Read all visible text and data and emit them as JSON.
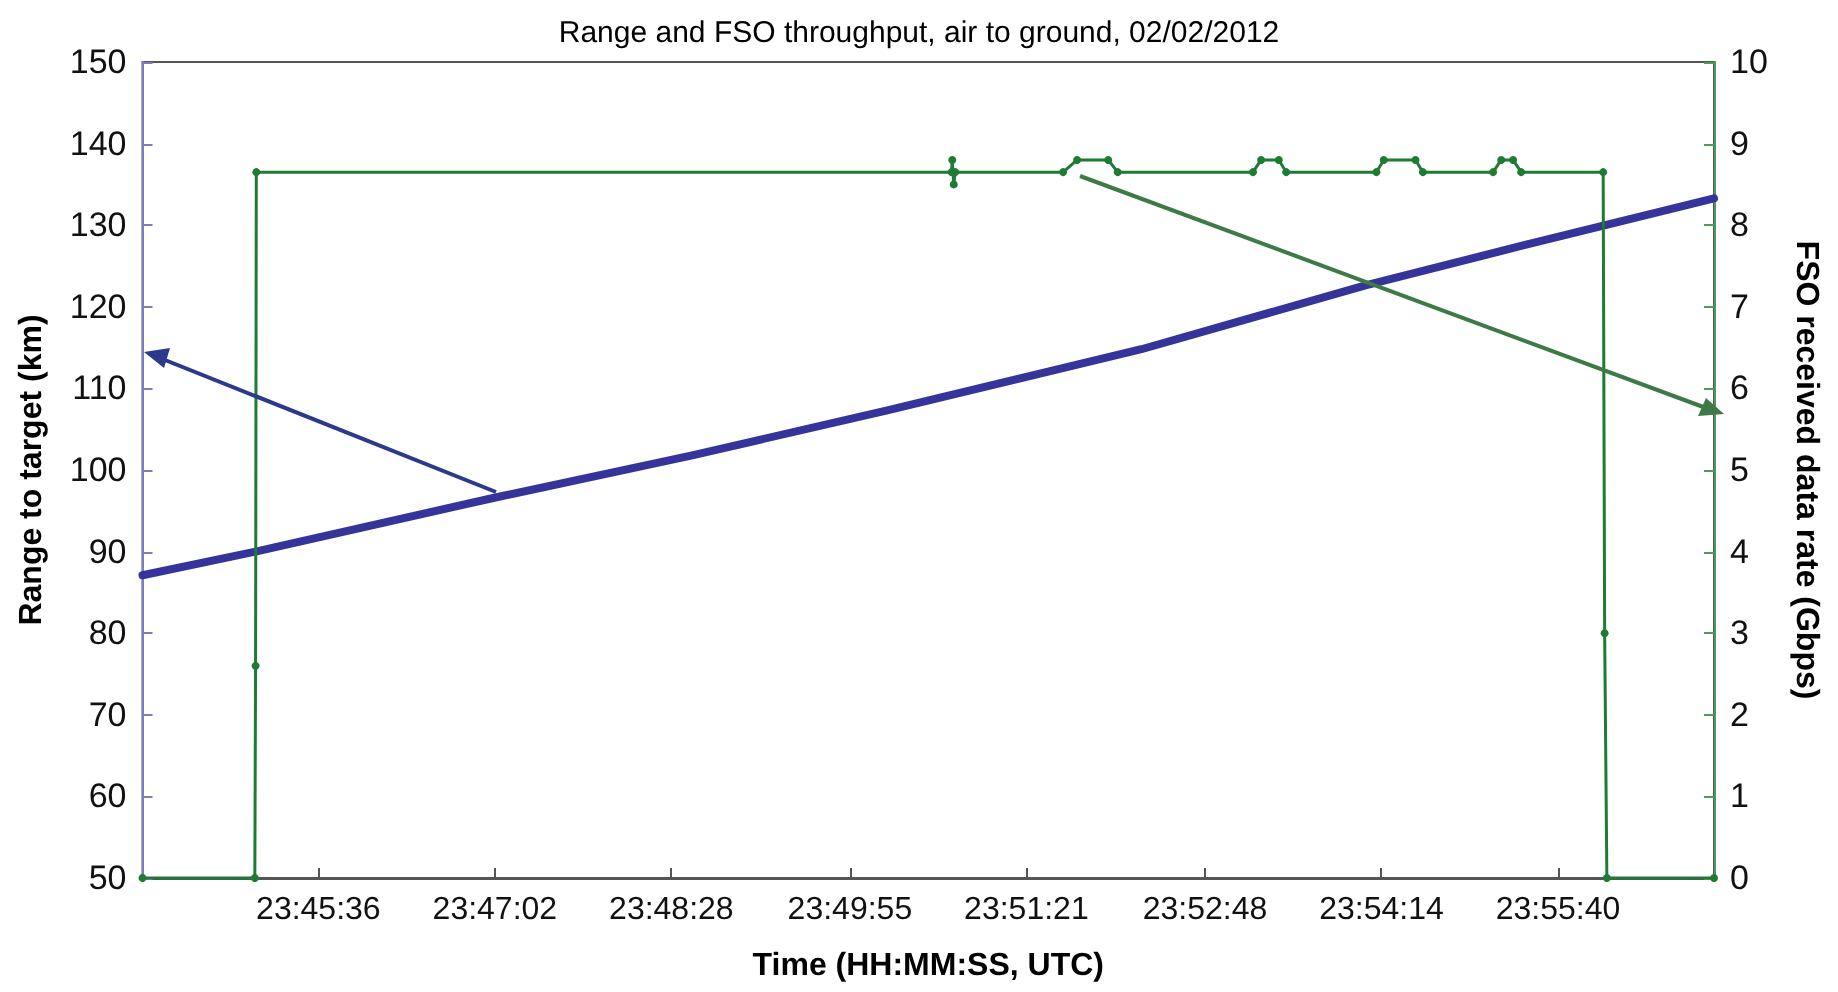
{
  "chart_data": {
    "type": "line",
    "title": "Range and FSO throughput, air to ground, 02/02/2012",
    "xlabel": "Time (HH:MM:SS, UTC)",
    "ylabel": "Range to target (km)",
    "y2label": "FSO received data rate (Gbps)",
    "xlim": [
      23.7362,
      23.9489
    ],
    "xticks": [
      {
        "value": 23.76,
        "label": "23:45:36"
      },
      {
        "value": 23.783889,
        "label": "23:47:02"
      },
      {
        "value": 23.807778,
        "label": "23:48:28"
      },
      {
        "value": 23.831944,
        "label": "23:49:55"
      },
      {
        "value": 23.855833,
        "label": "23:51:21"
      },
      {
        "value": 23.88,
        "label": "23:52:48"
      },
      {
        "value": 23.903889,
        "label": "23:54:14"
      },
      {
        "value": 23.927778,
        "label": "23:55:40"
      }
    ],
    "ylim": [
      50,
      150
    ],
    "yticks": [
      50,
      60,
      70,
      80,
      90,
      100,
      110,
      120,
      130,
      140,
      150
    ],
    "y2lim": [
      0,
      10
    ],
    "y2ticks": [
      0,
      1,
      2,
      3,
      4,
      5,
      6,
      7,
      8,
      9,
      10
    ],
    "grid": false,
    "series": [
      {
        "color": "#34349a",
        "line_style": "solid",
        "marker": "none",
        "x": [
          23.7362,
          23.7515,
          23.7838,
          23.8106,
          23.837,
          23.8714,
          23.9016,
          23.9243,
          23.9489
        ],
        "values": [
          87.1,
          90.0,
          96.6,
          101.8,
          107.3,
          114.8,
          122.6,
          127.8,
          133.3
        ]
      },
      {
        "color": "#1e7b34",
        "axis": "y2",
        "line_style": "solid",
        "marker": "circle",
        "x": [
          23.7362,
          23.7514,
          23.7515,
          23.7516,
          23.8457,
          23.8458,
          23.846,
          23.8462,
          23.8608,
          23.8627,
          23.8669,
          23.8682,
          23.8865,
          23.8876,
          23.89,
          23.891,
          23.9032,
          23.9042,
          23.9085,
          23.9095,
          23.919,
          23.9201,
          23.9217,
          23.9228,
          23.9339,
          23.9341,
          23.9344,
          23.9489
        ],
        "values": [
          0,
          0,
          2.6,
          8.65,
          8.65,
          8.8,
          8.5,
          8.65,
          8.65,
          8.8,
          8.8,
          8.65,
          8.65,
          8.8,
          8.8,
          8.65,
          8.65,
          8.8,
          8.8,
          8.65,
          8.65,
          8.8,
          8.8,
          8.65,
          8.65,
          3.0,
          0,
          0
        ]
      }
    ]
  }
}
